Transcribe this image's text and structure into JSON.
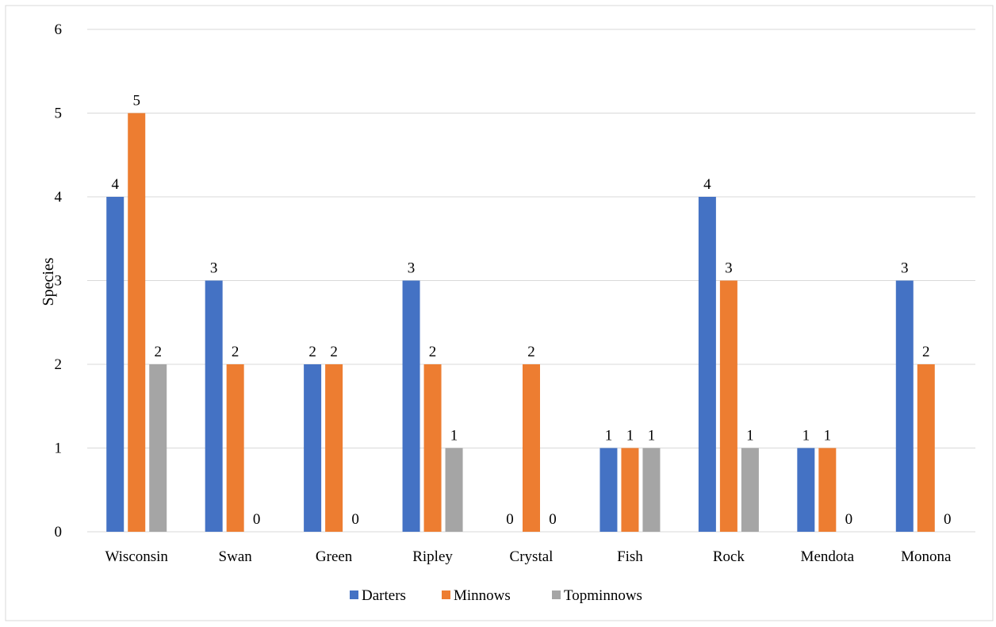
{
  "chart_data": {
    "type": "bar",
    "title": "",
    "xlabel": "",
    "ylabel": "Species",
    "ylim": [
      0,
      6
    ],
    "yticks": [
      "0",
      "1",
      "2",
      "3",
      "4",
      "5",
      "6"
    ],
    "grid": true,
    "legend_position": "bottom",
    "categories": [
      "Wisconsin",
      "Swan",
      "Green",
      "Ripley",
      "Crystal",
      "Fish",
      "Rock",
      "Mendota",
      "Monona"
    ],
    "series": [
      {
        "name": "Darters",
        "color": "#4472C4",
        "values": [
          4,
          3,
          2,
          3,
          0,
          1,
          4,
          1,
          3
        ]
      },
      {
        "name": "Minnows",
        "color": "#ED7D31",
        "values": [
          5,
          2,
          2,
          2,
          2,
          1,
          3,
          1,
          2
        ]
      },
      {
        "name": "Topminnows",
        "color": "#A5A5A5",
        "values": [
          2,
          0,
          0,
          1,
          0,
          1,
          1,
          0,
          0
        ]
      }
    ],
    "data_labels": [
      [
        "4",
        "3",
        "2",
        "3",
        "0",
        "1",
        "4",
        "1",
        "3"
      ],
      [
        "5",
        "2",
        "2",
        "2",
        "2",
        "1",
        "3",
        "1",
        "2"
      ],
      [
        "2",
        "0",
        "0",
        "1",
        "0",
        "1",
        "1",
        "0",
        "0"
      ]
    ]
  }
}
